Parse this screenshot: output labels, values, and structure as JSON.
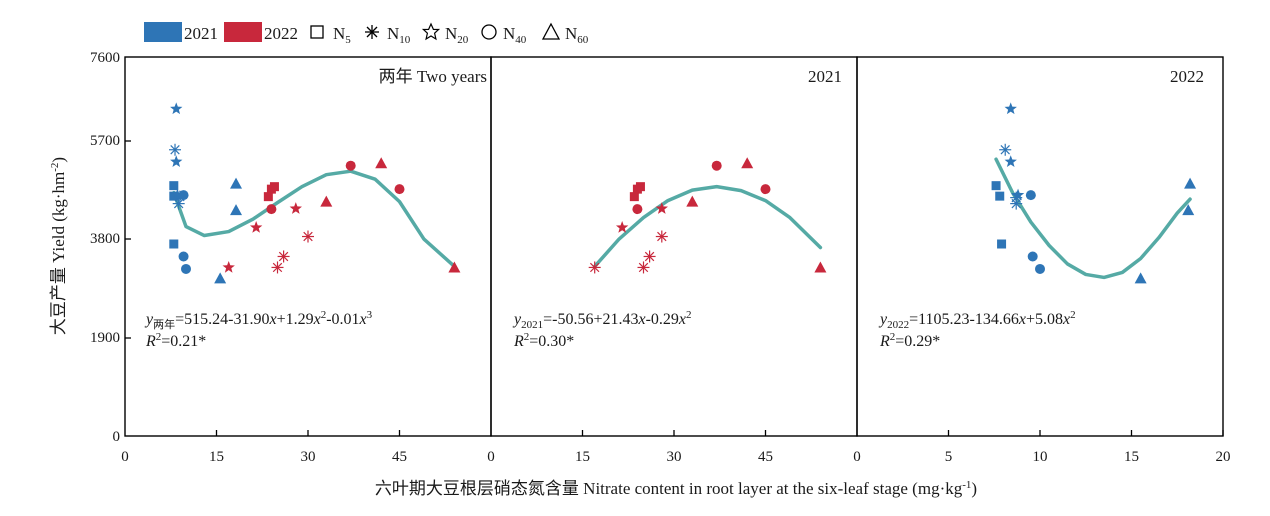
{
  "colors": {
    "y2021": "#2e75b6",
    "y2022": "#c8283c",
    "fit": "#55aaa5",
    "axis": "#000000"
  },
  "legend": {
    "y2021": "2021",
    "y2022": "2022",
    "n5": "N",
    "n5_sub": "5",
    "n10": "N",
    "n10_sub": "10",
    "n20": "N",
    "n20_sub": "20",
    "n40": "N",
    "n40_sub": "40",
    "n60": "N",
    "n60_sub": "60"
  },
  "axes": {
    "ylabel": "大豆产量 Yield (kg·hm",
    "ylabel_sup": "-2",
    "ylabel_end": ")",
    "xlabel": "六叶期大豆根层硝态氮含量 Nitrate content in root layer at the six-leaf stage (mg·kg",
    "xlabel_sup": "-1",
    "xlabel_end": ")",
    "y_ticks": [
      "0",
      "1900",
      "3800",
      "5700",
      "7600"
    ]
  },
  "panels": [
    {
      "title": "两年 Two years",
      "x_tick_labels": [
        "0",
        "15",
        "30",
        "45"
      ],
      "equation": {
        "y": "y",
        "sub": "两年",
        "p1": "=515.24-31.90",
        "x1": "x",
        "p2": "+1.29",
        "x2": "x",
        "e2": "2",
        "p3": "-0.01",
        "x3": "x",
        "e3": "3"
      },
      "r2": {
        "r": "R",
        "sup": "2",
        "rest": "=0.21*"
      }
    },
    {
      "title": "2021",
      "x_tick_labels": [
        "0",
        "15",
        "30",
        "45"
      ],
      "equation": {
        "y": "y",
        "sub": "2021",
        "p1": "=-50.56+21.43",
        "x1": "x",
        "p2": "-0.29",
        "x2": "x",
        "e2": "2"
      },
      "r2": {
        "r": "R",
        "sup": "2",
        "rest": "=0.30*"
      }
    },
    {
      "title": "2022",
      "x_tick_labels": [
        "0",
        "5",
        "10",
        "15",
        "20"
      ],
      "equation": {
        "y": "y",
        "sub": "2022",
        "p1": "=1105.23-134.66",
        "x1": "x",
        "p2": "+5.08",
        "x2": "x",
        "e2": "2"
      },
      "r2": {
        "r": "R",
        "sup": "2",
        "rest": "=0.29*"
      }
    }
  ],
  "chart_data": [
    {
      "type": "scatter",
      "title": "两年 Two years",
      "xlim": [
        0,
        60
      ],
      "ylim": [
        0,
        7600
      ],
      "x_ticks": [
        0,
        15,
        30,
        45
      ],
      "y_ticks": [
        0,
        1900,
        3800,
        5700,
        7600
      ],
      "fit": {
        "order": 3,
        "coeffs": [
          515.24,
          -31.9,
          1.29,
          -0.01
        ],
        "x_range": [
          8,
          54
        ],
        "display_y": [
          4880,
          4200,
          4020,
          4100,
          4350,
          4680,
          5000,
          5240,
          5310,
          5150,
          4700,
          3950,
          3400
        ],
        "display_x": [
          8,
          10,
          13,
          17,
          21,
          25,
          29,
          33,
          37,
          41,
          45,
          49,
          54
        ]
      },
      "points": [
        {
          "year": "2021",
          "n": "N5",
          "x": 8.0,
          "y": 5020
        },
        {
          "year": "2021",
          "n": "N5",
          "x": 8.0,
          "y": 4810
        },
        {
          "year": "2021",
          "n": "N5",
          "x": 8.0,
          "y": 3850
        },
        {
          "year": "2021",
          "n": "N10",
          "x": 8.2,
          "y": 5740
        },
        {
          "year": "2021",
          "n": "N10",
          "x": 8.8,
          "y": 4660
        },
        {
          "year": "2021",
          "n": "N10",
          "x": 9.0,
          "y": 4800
        },
        {
          "year": "2021",
          "n": "N20",
          "x": 8.4,
          "y": 6560
        },
        {
          "year": "2021",
          "n": "N20",
          "x": 8.4,
          "y": 5500
        },
        {
          "year": "2021",
          "n": "N20",
          "x": 8.6,
          "y": 4830
        },
        {
          "year": "2021",
          "n": "N40",
          "x": 9.6,
          "y": 4830
        },
        {
          "year": "2021",
          "n": "N40",
          "x": 9.6,
          "y": 3600
        },
        {
          "year": "2021",
          "n": "N40",
          "x": 10.0,
          "y": 3350
        },
        {
          "year": "2021",
          "n": "N60",
          "x": 15.6,
          "y": 3160
        },
        {
          "year": "2021",
          "n": "N60",
          "x": 18.2,
          "y": 5060
        },
        {
          "year": "2021",
          "n": "N60",
          "x": 18.2,
          "y": 4530
        },
        {
          "year": "2022",
          "n": "N5",
          "x": 23.5,
          "y": 4800
        },
        {
          "year": "2022",
          "n": "N5",
          "x": 24.0,
          "y": 4950
        },
        {
          "year": "2022",
          "n": "N5",
          "x": 24.5,
          "y": 5000
        },
        {
          "year": "2022",
          "n": "N10",
          "x": 25.0,
          "y": 3380
        },
        {
          "year": "2022",
          "n": "N10",
          "x": 26.0,
          "y": 3600
        },
        {
          "year": "2022",
          "n": "N10",
          "x": 30.0,
          "y": 4000
        },
        {
          "year": "2022",
          "n": "N20",
          "x": 17.0,
          "y": 3380
        },
        {
          "year": "2022",
          "n": "N20",
          "x": 21.5,
          "y": 4180
        },
        {
          "year": "2022",
          "n": "N20",
          "x": 28.0,
          "y": 4560
        },
        {
          "year": "2022",
          "n": "N40",
          "x": 24.0,
          "y": 4550
        },
        {
          "year": "2022",
          "n": "N40",
          "x": 37.0,
          "y": 5420
        },
        {
          "year": "2022",
          "n": "N40",
          "x": 45.0,
          "y": 4950
        },
        {
          "year": "2022",
          "n": "N60",
          "x": 33.0,
          "y": 4700
        },
        {
          "year": "2022",
          "n": "N60",
          "x": 42.0,
          "y": 5470
        },
        {
          "year": "2022",
          "n": "N60",
          "x": 54.0,
          "y": 3380
        }
      ]
    },
    {
      "type": "scatter",
      "title": "2021",
      "xlim": [
        0,
        60
      ],
      "ylim": [
        0,
        7600
      ],
      "x_ticks": [
        0,
        15,
        30,
        45
      ],
      "y_ticks": [
        0,
        1900,
        3800,
        5700,
        7600
      ],
      "fit": {
        "order": 2,
        "coeffs": [
          -50.56,
          21.43,
          -0.29
        ],
        "x_range": [
          17,
          54
        ],
        "display_x": [
          17,
          21,
          25,
          29,
          33,
          37,
          41,
          45,
          49,
          54
        ],
        "display_y": [
          3400,
          3950,
          4380,
          4720,
          4930,
          5000,
          4920,
          4720,
          4380,
          3780
        ]
      },
      "points": [
        {
          "year": "2022",
          "n": "N5",
          "x": 23.5,
          "y": 4800
        },
        {
          "year": "2022",
          "n": "N5",
          "x": 24.0,
          "y": 4950
        },
        {
          "year": "2022",
          "n": "N5",
          "x": 24.5,
          "y": 5000
        },
        {
          "year": "2022",
          "n": "N10",
          "x": 17.0,
          "y": 3380
        },
        {
          "year": "2022",
          "n": "N10",
          "x": 25.0,
          "y": 3380
        },
        {
          "year": "2022",
          "n": "N10",
          "x": 26.0,
          "y": 3600
        },
        {
          "year": "2022",
          "n": "N10",
          "x": 28.0,
          "y": 4000
        },
        {
          "year": "2022",
          "n": "N20",
          "x": 21.5,
          "y": 4180
        },
        {
          "year": "2022",
          "n": "N20",
          "x": 28.0,
          "y": 4560
        },
        {
          "year": "2022",
          "n": "N40",
          "x": 24.0,
          "y": 4550
        },
        {
          "year": "2022",
          "n": "N40",
          "x": 37.0,
          "y": 5420
        },
        {
          "year": "2022",
          "n": "N40",
          "x": 45.0,
          "y": 4950
        },
        {
          "year": "2022",
          "n": "N60",
          "x": 33.0,
          "y": 4700
        },
        {
          "year": "2022",
          "n": "N60",
          "x": 42.0,
          "y": 5470
        },
        {
          "year": "2022",
          "n": "N60",
          "x": 54.0,
          "y": 3380
        }
      ]
    },
    {
      "type": "scatter",
      "title": "2022",
      "xlim": [
        0,
        20
      ],
      "ylim": [
        0,
        7600
      ],
      "x_ticks": [
        0,
        5,
        10,
        15,
        20
      ],
      "y_ticks": [
        0,
        1900,
        3800,
        5700,
        7600
      ],
      "fit": {
        "order": 2,
        "coeffs": [
          1105.23,
          -134.66,
          5.08
        ],
        "x_range": [
          7.6,
          18.2
        ],
        "display_x": [
          7.6,
          8.5,
          9.5,
          10.5,
          11.5,
          12.5,
          13.5,
          14.5,
          15.5,
          16.5,
          17.5,
          18.2
        ],
        "display_y": [
          5550,
          4880,
          4290,
          3820,
          3450,
          3240,
          3180,
          3280,
          3560,
          3980,
          4470,
          4750
        ]
      },
      "points": [
        {
          "year": "2021",
          "n": "N5",
          "x": 7.6,
          "y": 5020
        },
        {
          "year": "2021",
          "n": "N5",
          "x": 7.8,
          "y": 4810
        },
        {
          "year": "2021",
          "n": "N5",
          "x": 7.9,
          "y": 3850
        },
        {
          "year": "2021",
          "n": "N10",
          "x": 8.1,
          "y": 5740
        },
        {
          "year": "2021",
          "n": "N10",
          "x": 8.7,
          "y": 4660
        },
        {
          "year": "2021",
          "n": "N10",
          "x": 8.7,
          "y": 4780
        },
        {
          "year": "2021",
          "n": "N20",
          "x": 8.4,
          "y": 6560
        },
        {
          "year": "2021",
          "n": "N20",
          "x": 8.4,
          "y": 5500
        },
        {
          "year": "2021",
          "n": "N20",
          "x": 8.8,
          "y": 4830
        },
        {
          "year": "2021",
          "n": "N40",
          "x": 9.5,
          "y": 4830
        },
        {
          "year": "2021",
          "n": "N40",
          "x": 9.6,
          "y": 3600
        },
        {
          "year": "2021",
          "n": "N40",
          "x": 10.0,
          "y": 3350
        },
        {
          "year": "2021",
          "n": "N60",
          "x": 15.5,
          "y": 3160
        },
        {
          "year": "2021",
          "n": "N60",
          "x": 18.2,
          "y": 5060
        },
        {
          "year": "2021",
          "n": "N60",
          "x": 18.1,
          "y": 4530
        }
      ]
    }
  ]
}
